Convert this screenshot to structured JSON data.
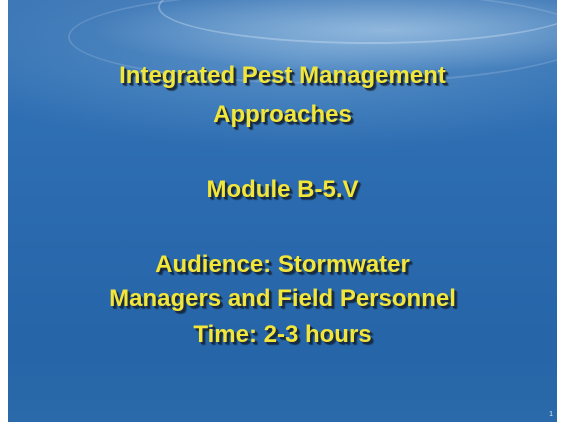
{
  "slide": {
    "title": [
      "Integrated Pest Management",
      "Approaches"
    ],
    "module": "Module B-5.V",
    "audience": [
      "Audience: Stormwater",
      "Managers and Field Personnel"
    ],
    "time": "Time: 2-3 hours",
    "slide_number": "1"
  }
}
